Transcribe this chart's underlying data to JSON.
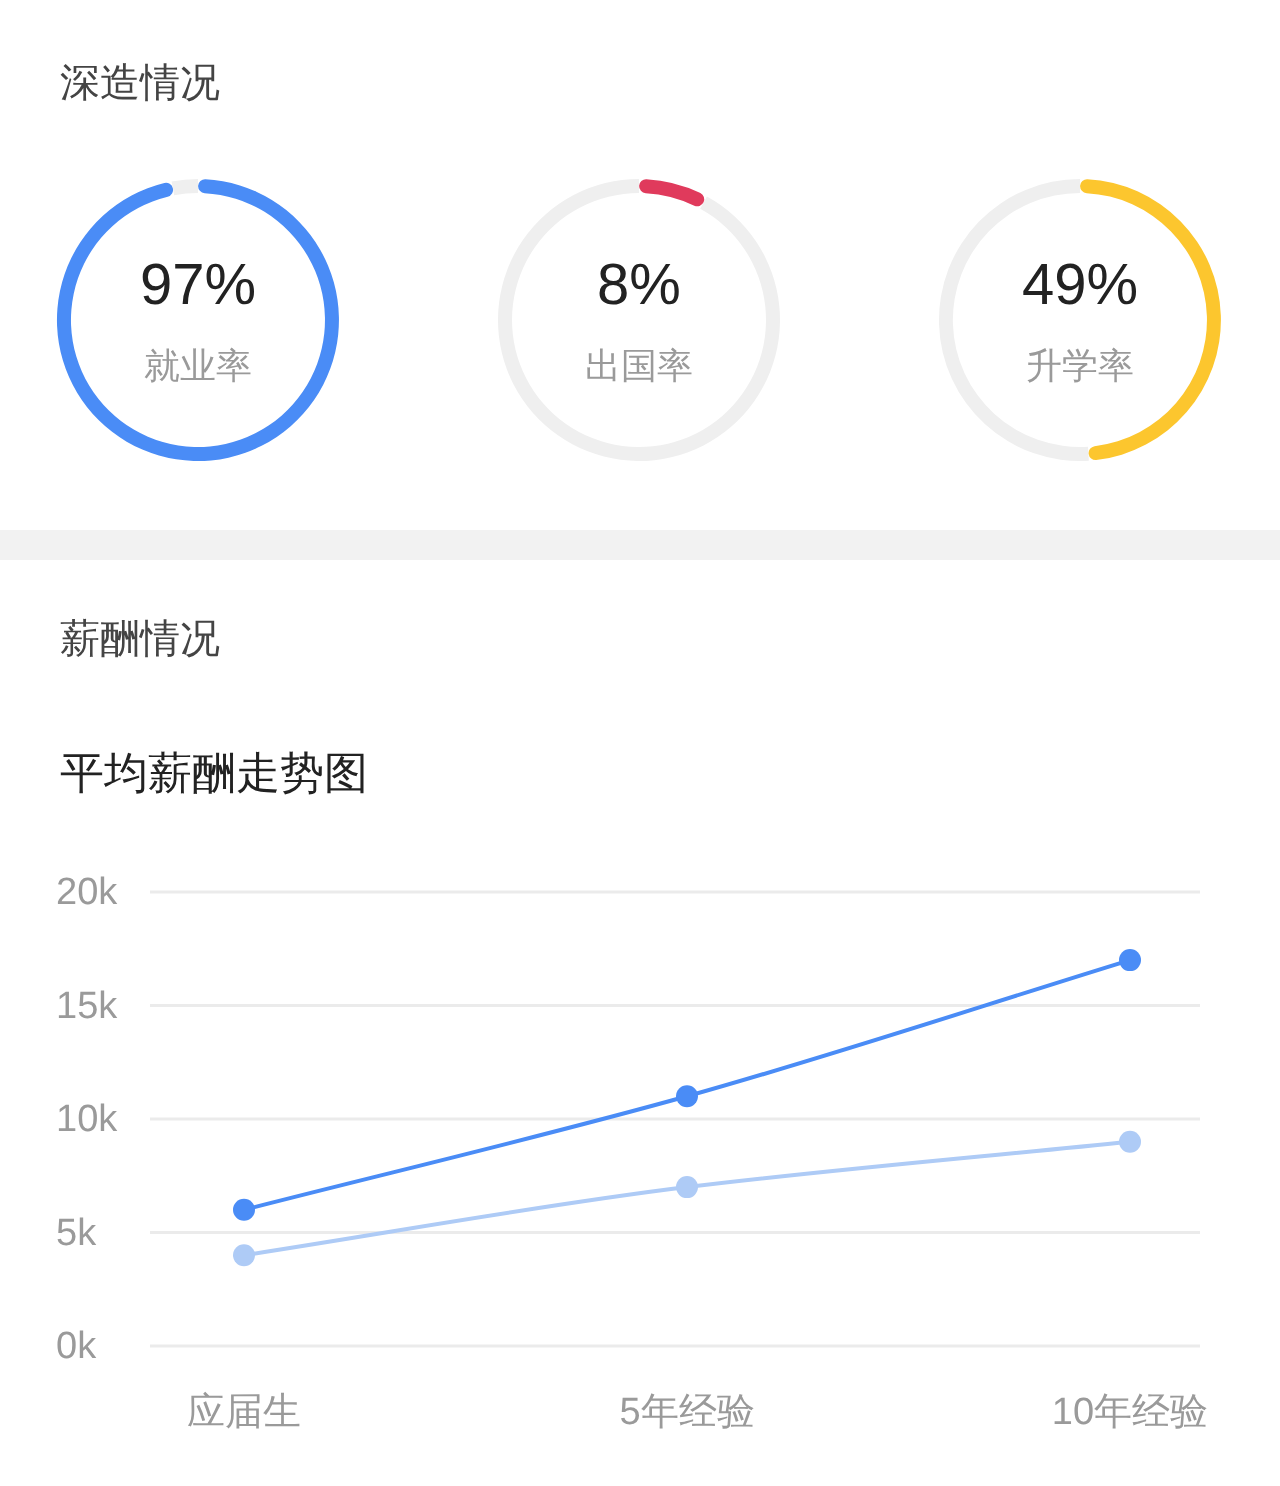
{
  "chart_data": [
    {
      "type": "donut",
      "title": "深造情况",
      "categories": [
        "就业率",
        null
      ],
      "values": [
        97,
        3
      ],
      "colors": [
        "#4a8cf6",
        "#efefef"
      ],
      "value_labels": [
        "97%",
        null
      ]
    },
    {
      "type": "donut",
      "categories": [
        "出国率",
        null
      ],
      "values": [
        8,
        92
      ],
      "colors": [
        "#e03a5c",
        "#efefef"
      ],
      "value_labels": [
        "8%",
        null
      ]
    },
    {
      "type": "donut",
      "categories": [
        "升学率",
        null
      ],
      "values": [
        49,
        51
      ],
      "colors": [
        "#fcc62e",
        "#efefef"
      ],
      "value_labels": [
        "49%",
        null
      ]
    },
    {
      "type": "line",
      "title": "薪酬情况",
      "subtitle": "平均薪酬走势图",
      "categories": [
        "应届生",
        "5年经验",
        "10年经验"
      ],
      "series": [
        {
          "color": "#4a8cf6",
          "values": [
            6000,
            11000,
            17000
          ]
        },
        {
          "color": "#aecbf6",
          "values": [
            4000,
            7000,
            9000
          ]
        }
      ],
      "ylim": [
        0,
        20000
      ],
      "yticks": [
        {
          "value": 0,
          "label": "0k"
        },
        {
          "value": 5000,
          "label": "5k"
        },
        {
          "value": 10000,
          "label": "10k"
        },
        {
          "value": 15000,
          "label": "15k"
        },
        {
          "value": 20000,
          "label": "20k"
        }
      ],
      "grid": "y",
      "marker": "circle",
      "line_style": "solid"
    }
  ]
}
